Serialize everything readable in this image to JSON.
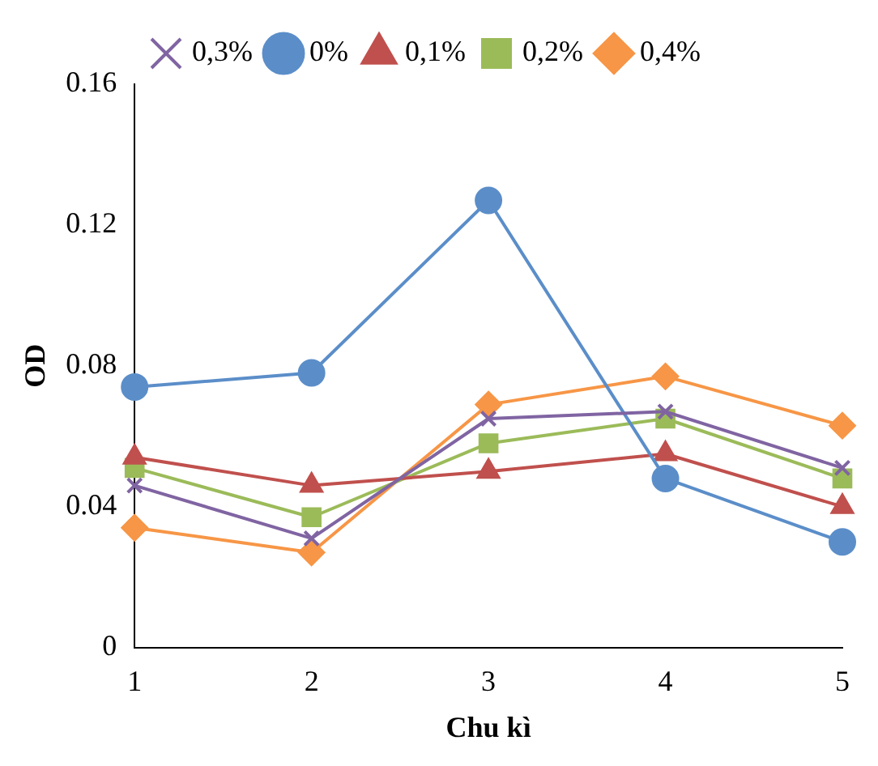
{
  "chart_data": {
    "type": "line",
    "xlabel": "Chu kì",
    "ylabel": "OD",
    "categories": [
      "1",
      "2",
      "3",
      "4",
      "5"
    ],
    "ylim": [
      0,
      0.16
    ],
    "yticks": [
      0,
      0.04,
      0.08,
      0.12,
      0.16
    ],
    "grid": false,
    "legend": "top",
    "series": [
      {
        "name": "0%",
        "color": "#5b8ec9",
        "marker": "circle",
        "values": [
          0.074,
          0.078,
          0.127,
          0.048,
          0.03
        ]
      },
      {
        "name": "0,1%",
        "color": "#c0504d",
        "marker": "triangle",
        "values": [
          0.054,
          0.046,
          0.05,
          0.055,
          0.04
        ]
      },
      {
        "name": "0,2%",
        "color": "#9bbb59",
        "marker": "square",
        "values": [
          0.051,
          0.037,
          0.058,
          0.065,
          0.048
        ]
      },
      {
        "name": "0,3%",
        "color": "#8064a2",
        "marker": "cross",
        "values": [
          0.046,
          0.031,
          0.065,
          0.067,
          0.051
        ]
      },
      {
        "name": "0,4%",
        "color": "#f79646",
        "marker": "diamond",
        "values": [
          0.034,
          0.027,
          0.069,
          0.077,
          0.063
        ]
      }
    ]
  }
}
